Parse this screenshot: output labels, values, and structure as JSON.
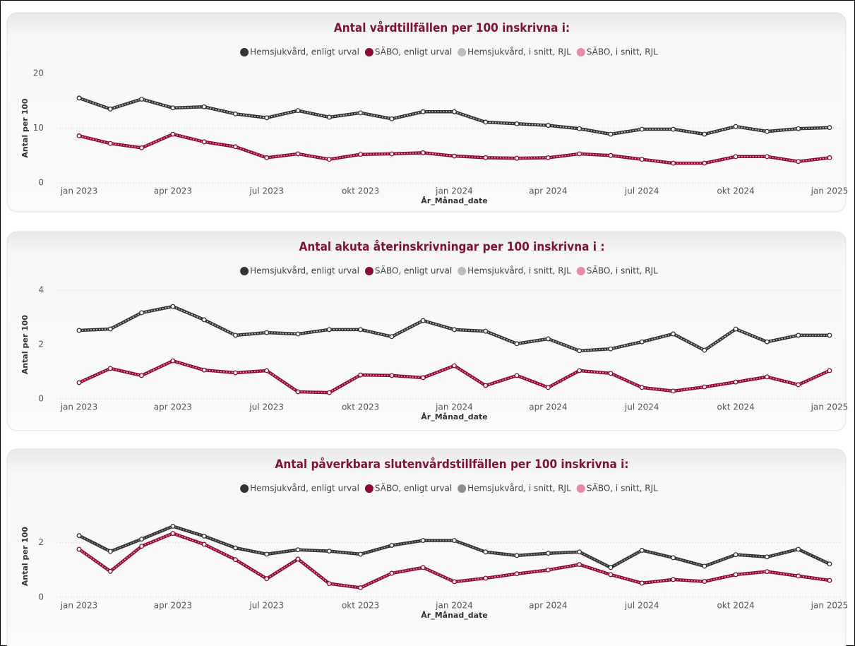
{
  "chart_data": [
    {
      "type": "line",
      "title": "Antal vårdtillfällen per 100 inskrivna i:",
      "x_label": "År_Månad_date",
      "y_label": "Antal per 100",
      "categories": [
        "jan 2023",
        null,
        null,
        "apr 2023",
        null,
        null,
        "jul 2023",
        null,
        null,
        "okt 2023",
        null,
        null,
        "jan 2024",
        null,
        null,
        "apr 2024",
        null,
        null,
        "jul 2024",
        null,
        null,
        "okt 2024",
        null,
        null,
        "jan 2025"
      ],
      "ylim": [
        0,
        20
      ],
      "yticks": [
        0,
        10,
        20
      ],
      "grid": true,
      "series": [
        {
          "name": "Hemsjukvård, enligt urval",
          "color": "#333333",
          "values": [
            15.5,
            13.5,
            15.3,
            13.7,
            13.9,
            12.6,
            11.9,
            13.2,
            12.0,
            12.8,
            11.7,
            13.0,
            13.0,
            11.1,
            10.8,
            10.5,
            9.9,
            8.9,
            9.8,
            9.8,
            8.9,
            10.3,
            9.4,
            9.9,
            10.1
          ]
        },
        {
          "name": "SÄBO, enligt urval",
          "color": "#8b0a3a",
          "values": [
            8.6,
            7.2,
            6.4,
            8.9,
            7.5,
            6.6,
            4.6,
            5.3,
            4.3,
            5.2,
            5.3,
            5.5,
            4.9,
            4.6,
            4.5,
            4.6,
            5.3,
            5.0,
            4.3,
            3.6,
            3.6,
            4.8,
            4.8,
            3.9,
            4.6
          ]
        },
        {
          "name": "Hemsjukvård, i snitt, RJL",
          "color": "#bdbdbd",
          "values": [
            15.5,
            13.5,
            15.3,
            13.7,
            13.9,
            12.6,
            11.9,
            13.2,
            12.0,
            12.8,
            11.7,
            13.0,
            13.0,
            11.1,
            10.8,
            10.5,
            9.9,
            8.9,
            9.8,
            9.8,
            8.9,
            10.3,
            9.4,
            9.9,
            10.1
          ]
        },
        {
          "name": "SÄBO, i snitt, RJL",
          "color": "#e68aa8",
          "values": [
            8.6,
            7.2,
            6.4,
            8.9,
            7.5,
            6.6,
            4.6,
            5.3,
            4.3,
            5.2,
            5.3,
            5.5,
            4.9,
            4.6,
            4.5,
            4.6,
            5.3,
            5.0,
            4.3,
            3.6,
            3.6,
            4.8,
            4.8,
            3.9,
            4.6
          ]
        }
      ]
    },
    {
      "type": "line",
      "title": "Antal akuta återinskrivningar per 100 inskrivna i :",
      "x_label": "År_Månad_date",
      "y_label": "Antal per 100",
      "categories": [
        "jan 2023",
        null,
        null,
        "apr 2023",
        null,
        null,
        "jul 2023",
        null,
        null,
        "okt 2023",
        null,
        null,
        "jan 2024",
        null,
        null,
        "apr 2024",
        null,
        null,
        "jul 2024",
        null,
        null,
        "okt 2024",
        null,
        null,
        "jan 2025"
      ],
      "ylim": [
        0,
        4
      ],
      "yticks": [
        0,
        2,
        4
      ],
      "grid": true,
      "series": [
        {
          "name": "Hemsjukvård, enligt urval",
          "color": "#333333",
          "values": [
            2.52,
            2.57,
            3.17,
            3.4,
            2.91,
            2.34,
            2.44,
            2.39,
            2.55,
            2.55,
            2.29,
            2.88,
            2.55,
            2.49,
            2.03,
            2.21,
            1.77,
            1.84,
            2.1,
            2.39,
            1.79,
            2.57,
            2.1,
            2.34,
            2.34
          ]
        },
        {
          "name": "SÄBO, enligt urval",
          "color": "#8b0a3a",
          "values": [
            0.6,
            1.12,
            0.86,
            1.4,
            1.06,
            0.96,
            1.04,
            0.26,
            0.23,
            0.88,
            0.86,
            0.78,
            1.22,
            0.49,
            0.86,
            0.42,
            1.04,
            0.94,
            0.42,
            0.29,
            0.44,
            0.62,
            0.81,
            0.52,
            1.04
          ]
        },
        {
          "name": "Hemsjukvård, i snitt, RJL",
          "color": "#bdbdbd",
          "values": [
            2.52,
            2.57,
            3.17,
            3.4,
            2.91,
            2.34,
            2.44,
            2.39,
            2.55,
            2.55,
            2.29,
            2.88,
            2.55,
            2.49,
            2.03,
            2.21,
            1.77,
            1.84,
            2.1,
            2.39,
            1.79,
            2.57,
            2.1,
            2.34,
            2.34
          ]
        },
        {
          "name": "SÄBO, i snitt, RJL",
          "color": "#e68aa8",
          "values": [
            0.6,
            1.12,
            0.86,
            1.4,
            1.06,
            0.96,
            1.04,
            0.26,
            0.23,
            0.88,
            0.86,
            0.78,
            1.22,
            0.49,
            0.86,
            0.42,
            1.04,
            0.94,
            0.42,
            0.29,
            0.44,
            0.62,
            0.81,
            0.52,
            1.04
          ]
        }
      ]
    },
    {
      "type": "line",
      "title": "Antal påverkbara slutenvårdstillfällen per 100 inskrivna i:",
      "x_label": "År_Månad_date",
      "y_label": "Antal per 100",
      "categories": [
        "jan 2023",
        null,
        null,
        "apr 2023",
        null,
        null,
        "jul 2023",
        null,
        null,
        "okt 2023",
        null,
        null,
        "jan 2024",
        null,
        null,
        "apr 2024",
        null,
        null,
        "jul 2024",
        null,
        null,
        "okt 2024",
        null,
        null,
        "jan 2025"
      ],
      "ylim": [
        0,
        3
      ],
      "yticks": [
        0,
        2
      ],
      "grid": true,
      "series": [
        {
          "name": "Hemsjukvård, enligt urval",
          "color": "#333333",
          "values": [
            2.26,
            1.68,
            2.13,
            2.6,
            2.24,
            1.81,
            1.58,
            1.74,
            1.69,
            1.58,
            1.9,
            2.08,
            2.08,
            1.66,
            1.53,
            1.61,
            1.66,
            1.09,
            1.72,
            1.45,
            1.14,
            1.56,
            1.48,
            1.76,
            1.22
          ]
        },
        {
          "name": "SÄBO, enligt urval",
          "color": "#8b0a3a",
          "values": [
            1.76,
            0.95,
            1.87,
            2.34,
            1.94,
            1.38,
            0.68,
            1.4,
            0.5,
            0.35,
            0.88,
            1.09,
            0.57,
            0.7,
            0.86,
            1.0,
            1.2,
            0.83,
            0.52,
            0.65,
            0.58,
            0.83,
            0.94,
            0.78,
            0.62
          ]
        },
        {
          "name": "Hemsjukvård, i snitt, RJL",
          "color": "#8f8f8f",
          "values": [
            2.26,
            1.68,
            2.13,
            2.6,
            2.24,
            1.81,
            1.58,
            1.74,
            1.69,
            1.58,
            1.9,
            2.08,
            2.08,
            1.66,
            1.53,
            1.61,
            1.66,
            1.09,
            1.72,
            1.45,
            1.14,
            1.56,
            1.48,
            1.76,
            1.22
          ]
        },
        {
          "name": "SÄBO, i snitt, RJL",
          "color": "#e68aa8",
          "values": [
            1.76,
            0.95,
            1.87,
            2.34,
            1.94,
            1.38,
            0.68,
            1.4,
            0.5,
            0.35,
            0.88,
            1.09,
            0.57,
            0.7,
            0.86,
            1.0,
            1.2,
            0.83,
            0.52,
            0.65,
            0.58,
            0.83,
            0.94,
            0.78,
            0.62
          ]
        }
      ]
    }
  ]
}
